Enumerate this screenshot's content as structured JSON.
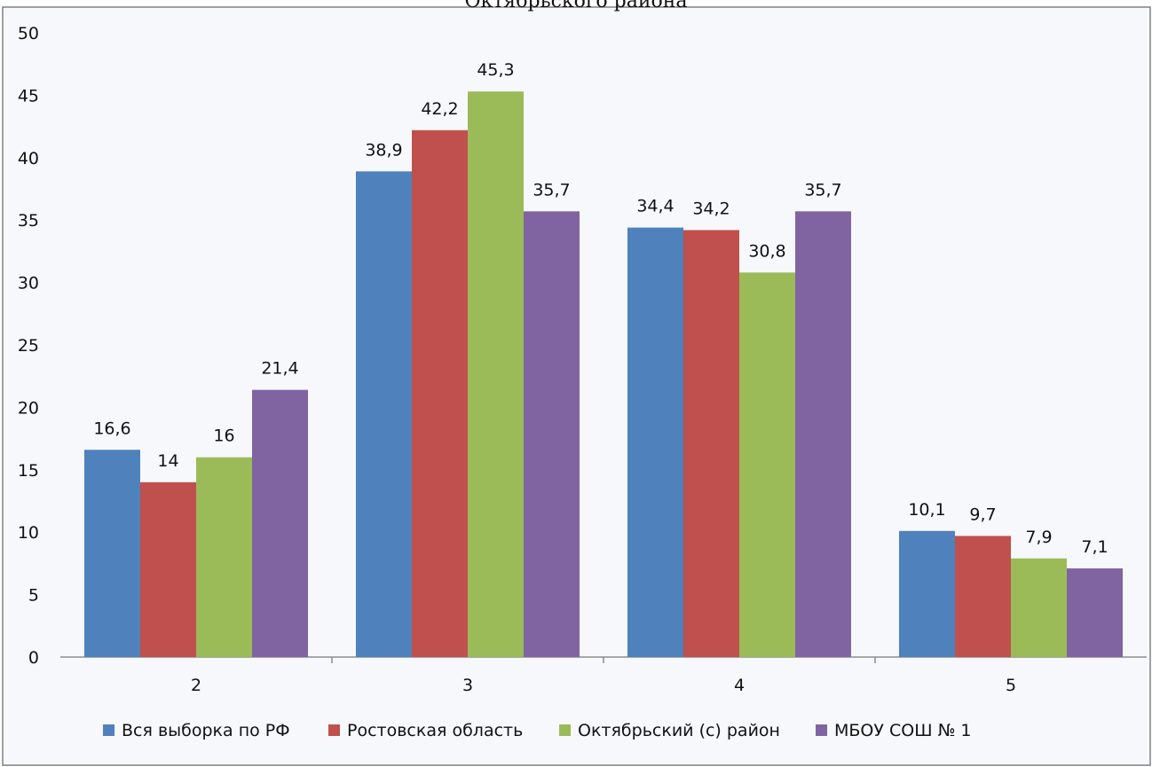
{
  "chart_data": {
    "type": "bar",
    "title": "Октябрьского района",
    "categories": [
      "2",
      "3",
      "4",
      "5"
    ],
    "ylim": [
      0,
      50
    ],
    "yticks": [
      "0",
      "5",
      "10",
      "15",
      "20",
      "25",
      "30",
      "35",
      "40",
      "45",
      "50"
    ],
    "grid": false,
    "legend_position": "bottom",
    "series": [
      {
        "name": "Вся выборка по РФ",
        "color": "#4F81BD",
        "values": [
          16.6,
          38.9,
          34.4,
          10.1
        ],
        "labels": [
          "16,6",
          "38,9",
          "34,4",
          "10,1"
        ]
      },
      {
        "name": "Ростовская область",
        "color": "#C0504D",
        "values": [
          14,
          42.2,
          34.2,
          9.7
        ],
        "labels": [
          "14",
          "42,2",
          "34,2",
          "9,7"
        ]
      },
      {
        "name": "Октябрьский (с) район",
        "color": "#9BBB59",
        "values": [
          16,
          45.3,
          30.8,
          7.9
        ],
        "labels": [
          "16",
          "45,3",
          "30,8",
          "7,9"
        ]
      },
      {
        "name": "МБОУ СОШ № 1",
        "color": "#8064A2",
        "values": [
          21.4,
          35.7,
          35.7,
          7.1
        ],
        "labels": [
          "21,4",
          "35,7",
          "35,7",
          "7,1"
        ]
      }
    ]
  }
}
